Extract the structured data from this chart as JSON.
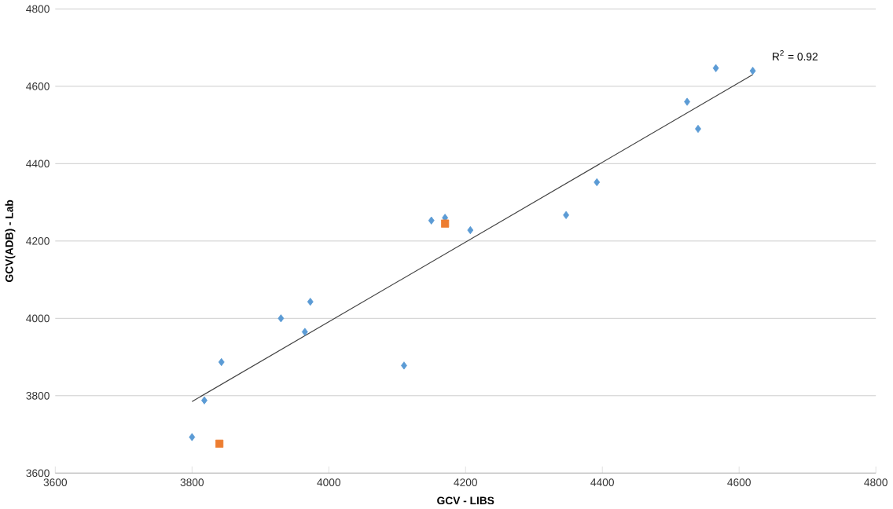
{
  "chart_data": {
    "type": "scatter",
    "xlabel": "GCV - LIBS",
    "ylabel": "GCV(ADB) - Lab",
    "xlim": [
      3600,
      4800
    ],
    "xticks": [
      3600,
      3800,
      4000,
      4200,
      4400,
      4600,
      4800
    ],
    "ylim": [
      3600,
      4800
    ],
    "yticks": [
      3600,
      3800,
      4000,
      4200,
      4400,
      4600,
      4800
    ],
    "grid": "y",
    "annotations": [
      "R$^{2}$ = 0.92"
    ],
    "series": [
      {
        "marker": "diamond",
        "color": "#5b9bd5",
        "x": [
          3800,
          3818,
          3843,
          3930,
          3965,
          3973,
          4110,
          4150,
          4170,
          4207,
          4347,
          4392,
          4524,
          4540,
          4566,
          4620
        ],
        "values": [
          3693,
          3788,
          3887,
          4000,
          3965,
          4043,
          3878,
          4253,
          4260,
          4228,
          4267,
          4352,
          4560,
          4490,
          4647,
          4640
        ]
      },
      {
        "marker": "square",
        "color": "#ed7d31",
        "x": [
          3840,
          4170
        ],
        "values": [
          3676,
          4245
        ]
      },
      {
        "type": "line",
        "marker": "none",
        "color": "#404040",
        "x": [
          3800,
          4620
        ],
        "values": [
          3785,
          4630
        ]
      }
    ]
  }
}
